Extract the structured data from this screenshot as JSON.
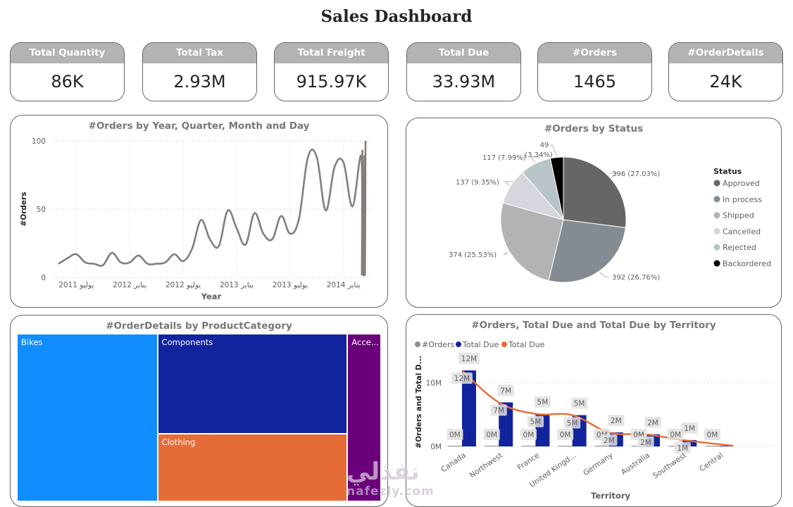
{
  "dashboard": {
    "title": "Sales Dashboard"
  },
  "kpis": [
    {
      "label": "Total Quantity",
      "value": "86K"
    },
    {
      "label": "Total Tax",
      "value": "2.93M"
    },
    {
      "label": "Total Freight",
      "value": "915.97K"
    },
    {
      "label": "Total Due",
      "value": "33.93M"
    },
    {
      "label": "#Orders",
      "value": "1465"
    },
    {
      "label": "#OrderDetails",
      "value": "24K"
    }
  ],
  "watermark": {
    "arabic": "نفذلي",
    "latin": "nafezly.com"
  },
  "chart_data": [
    {
      "type": "line",
      "title": "#Orders by Year, Quarter, Month and Day",
      "xlabel": "Year",
      "ylabel": "#Orders",
      "ylim": [
        0,
        100
      ],
      "yticks": [
        "0",
        "50",
        "100"
      ],
      "xticks": [
        "يوليو 2011",
        "يناير 2012",
        "يوليو 2012",
        "يناير 2013",
        "يوليو 2013",
        "يناير 2014"
      ],
      "grid": true,
      "color": "#857d7a",
      "values": [
        10,
        14,
        17,
        11,
        10,
        9,
        18,
        11,
        11,
        16,
        10,
        10,
        11,
        17,
        12,
        21,
        42,
        28,
        23,
        49,
        36,
        24,
        47,
        32,
        28,
        45,
        32,
        43,
        88,
        88,
        49,
        81,
        84,
        52,
        88,
        2,
        93,
        3,
        50,
        2,
        89,
        2,
        100
      ]
    },
    {
      "type": "pie",
      "title": "#Orders by Status",
      "legend_title": "Status",
      "legend_position": "right",
      "slices": [
        {
          "label": "Approved",
          "value": 396,
          "pct": "27.03%",
          "color": "#666666"
        },
        {
          "label": "In process",
          "value": 392,
          "pct": "26.76%",
          "color": "#848c92"
        },
        {
          "label": "Shipped",
          "value": 374,
          "pct": "25.53%",
          "color": "#b3b3b3"
        },
        {
          "label": "Cancelled",
          "value": 137,
          "pct": "9.35%",
          "color": "#d5d6de"
        },
        {
          "label": "Rejected",
          "value": 117,
          "pct": "7.99%",
          "color": "#b9c4c9"
        },
        {
          "label": "Backordered",
          "value": 49,
          "pct": "3.34%",
          "color": "#000000"
        }
      ]
    },
    {
      "type": "treemap",
      "title": "#OrderDetails by ProductCategory",
      "items": [
        {
          "label": "Bikes",
          "display": "Bikes",
          "share": 0.386,
          "color": "#118dff"
        },
        {
          "label": "Components",
          "display": "Components",
          "share": 0.311,
          "color": "#12239e"
        },
        {
          "label": "Clothing",
          "display": "Clothing",
          "share": 0.211,
          "color": "#e66c37"
        },
        {
          "label": "Accessories",
          "display": "Acce...",
          "share": 0.092,
          "color": "#6b007b"
        }
      ]
    },
    {
      "type": "bar",
      "title": "#Orders, Total Due and Total Due by Territory",
      "xlabel": "Territory",
      "ylabel": "#Orders and Total D...",
      "yticks": [
        "0M",
        "10M"
      ],
      "ylim": [
        0,
        14
      ],
      "grid": true,
      "legend_position": "top-left",
      "legend": [
        {
          "name": "#Orders",
          "color": "#8c8c8c"
        },
        {
          "name": "Total Due",
          "color": "#12239e"
        },
        {
          "name": "Total Due",
          "color": "#e66c37"
        }
      ],
      "categories": [
        "Canada",
        "Northwest",
        "France",
        "United Kingd...",
        "Germany",
        "Australia",
        "Southwest",
        "Central"
      ],
      "series": [
        {
          "name": "#Orders",
          "type": "bar",
          "color": "#8c8c8c",
          "values": [
            0.0015,
            0.0012,
            0.001,
            0.001,
            0.0008,
            0.0008,
            0.0006,
            0.0003
          ],
          "labels": [
            "0M",
            "0M",
            "0M",
            "0M",
            "0M",
            "0M",
            "0M",
            "0M"
          ]
        },
        {
          "name": "Total Due",
          "type": "bar",
          "color": "#12239e",
          "values": [
            11.9,
            6.9,
            5.1,
            4.9,
            2.2,
            1.9,
            1.0,
            0.1
          ],
          "labels": [
            "12M",
            "7M",
            "5M",
            "5M",
            "2M",
            "2M",
            "1M",
            "0M"
          ]
        },
        {
          "name": "Total Due",
          "type": "line",
          "color": "#e66c37",
          "values": [
            11.9,
            6.9,
            5.1,
            4.9,
            2.2,
            1.9,
            1.0,
            0.1
          ],
          "labels": [
            "12M",
            "7M",
            "5M",
            "5M",
            "2M",
            "2M",
            "1M",
            "0M"
          ]
        }
      ]
    }
  ]
}
